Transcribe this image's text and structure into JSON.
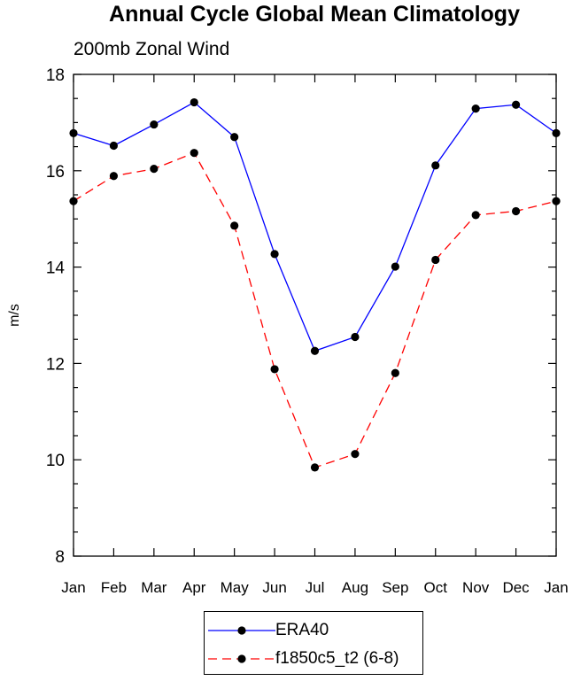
{
  "chart_data": {
    "type": "line",
    "title": "Annual Cycle Global Mean Climatology",
    "subtitle": "200mb Zonal Wind",
    "xlabel": "",
    "ylabel": "m/s",
    "categories": [
      "Jan",
      "Feb",
      "Mar",
      "Apr",
      "May",
      "Jun",
      "Jul",
      "Aug",
      "Sep",
      "Oct",
      "Nov",
      "Dec",
      "Jan"
    ],
    "ylim": [
      8,
      18
    ],
    "yticks": [
      8,
      10,
      12,
      14,
      16,
      18
    ],
    "grid": false,
    "legend_position": "bottom",
    "series": [
      {
        "name": "ERA40",
        "color": "#0000ff",
        "style": "solid",
        "values": [
          16.78,
          16.52,
          16.96,
          17.42,
          16.7,
          14.27,
          12.26,
          12.55,
          14.01,
          16.11,
          17.29,
          17.37,
          16.78
        ]
      },
      {
        "name": "f1850c5_t2 (6-8)",
        "color": "#ff0000",
        "style": "dashed",
        "values": [
          15.37,
          15.89,
          16.04,
          16.37,
          14.86,
          11.88,
          9.84,
          10.12,
          11.8,
          14.15,
          15.08,
          15.16,
          15.37
        ]
      }
    ]
  }
}
